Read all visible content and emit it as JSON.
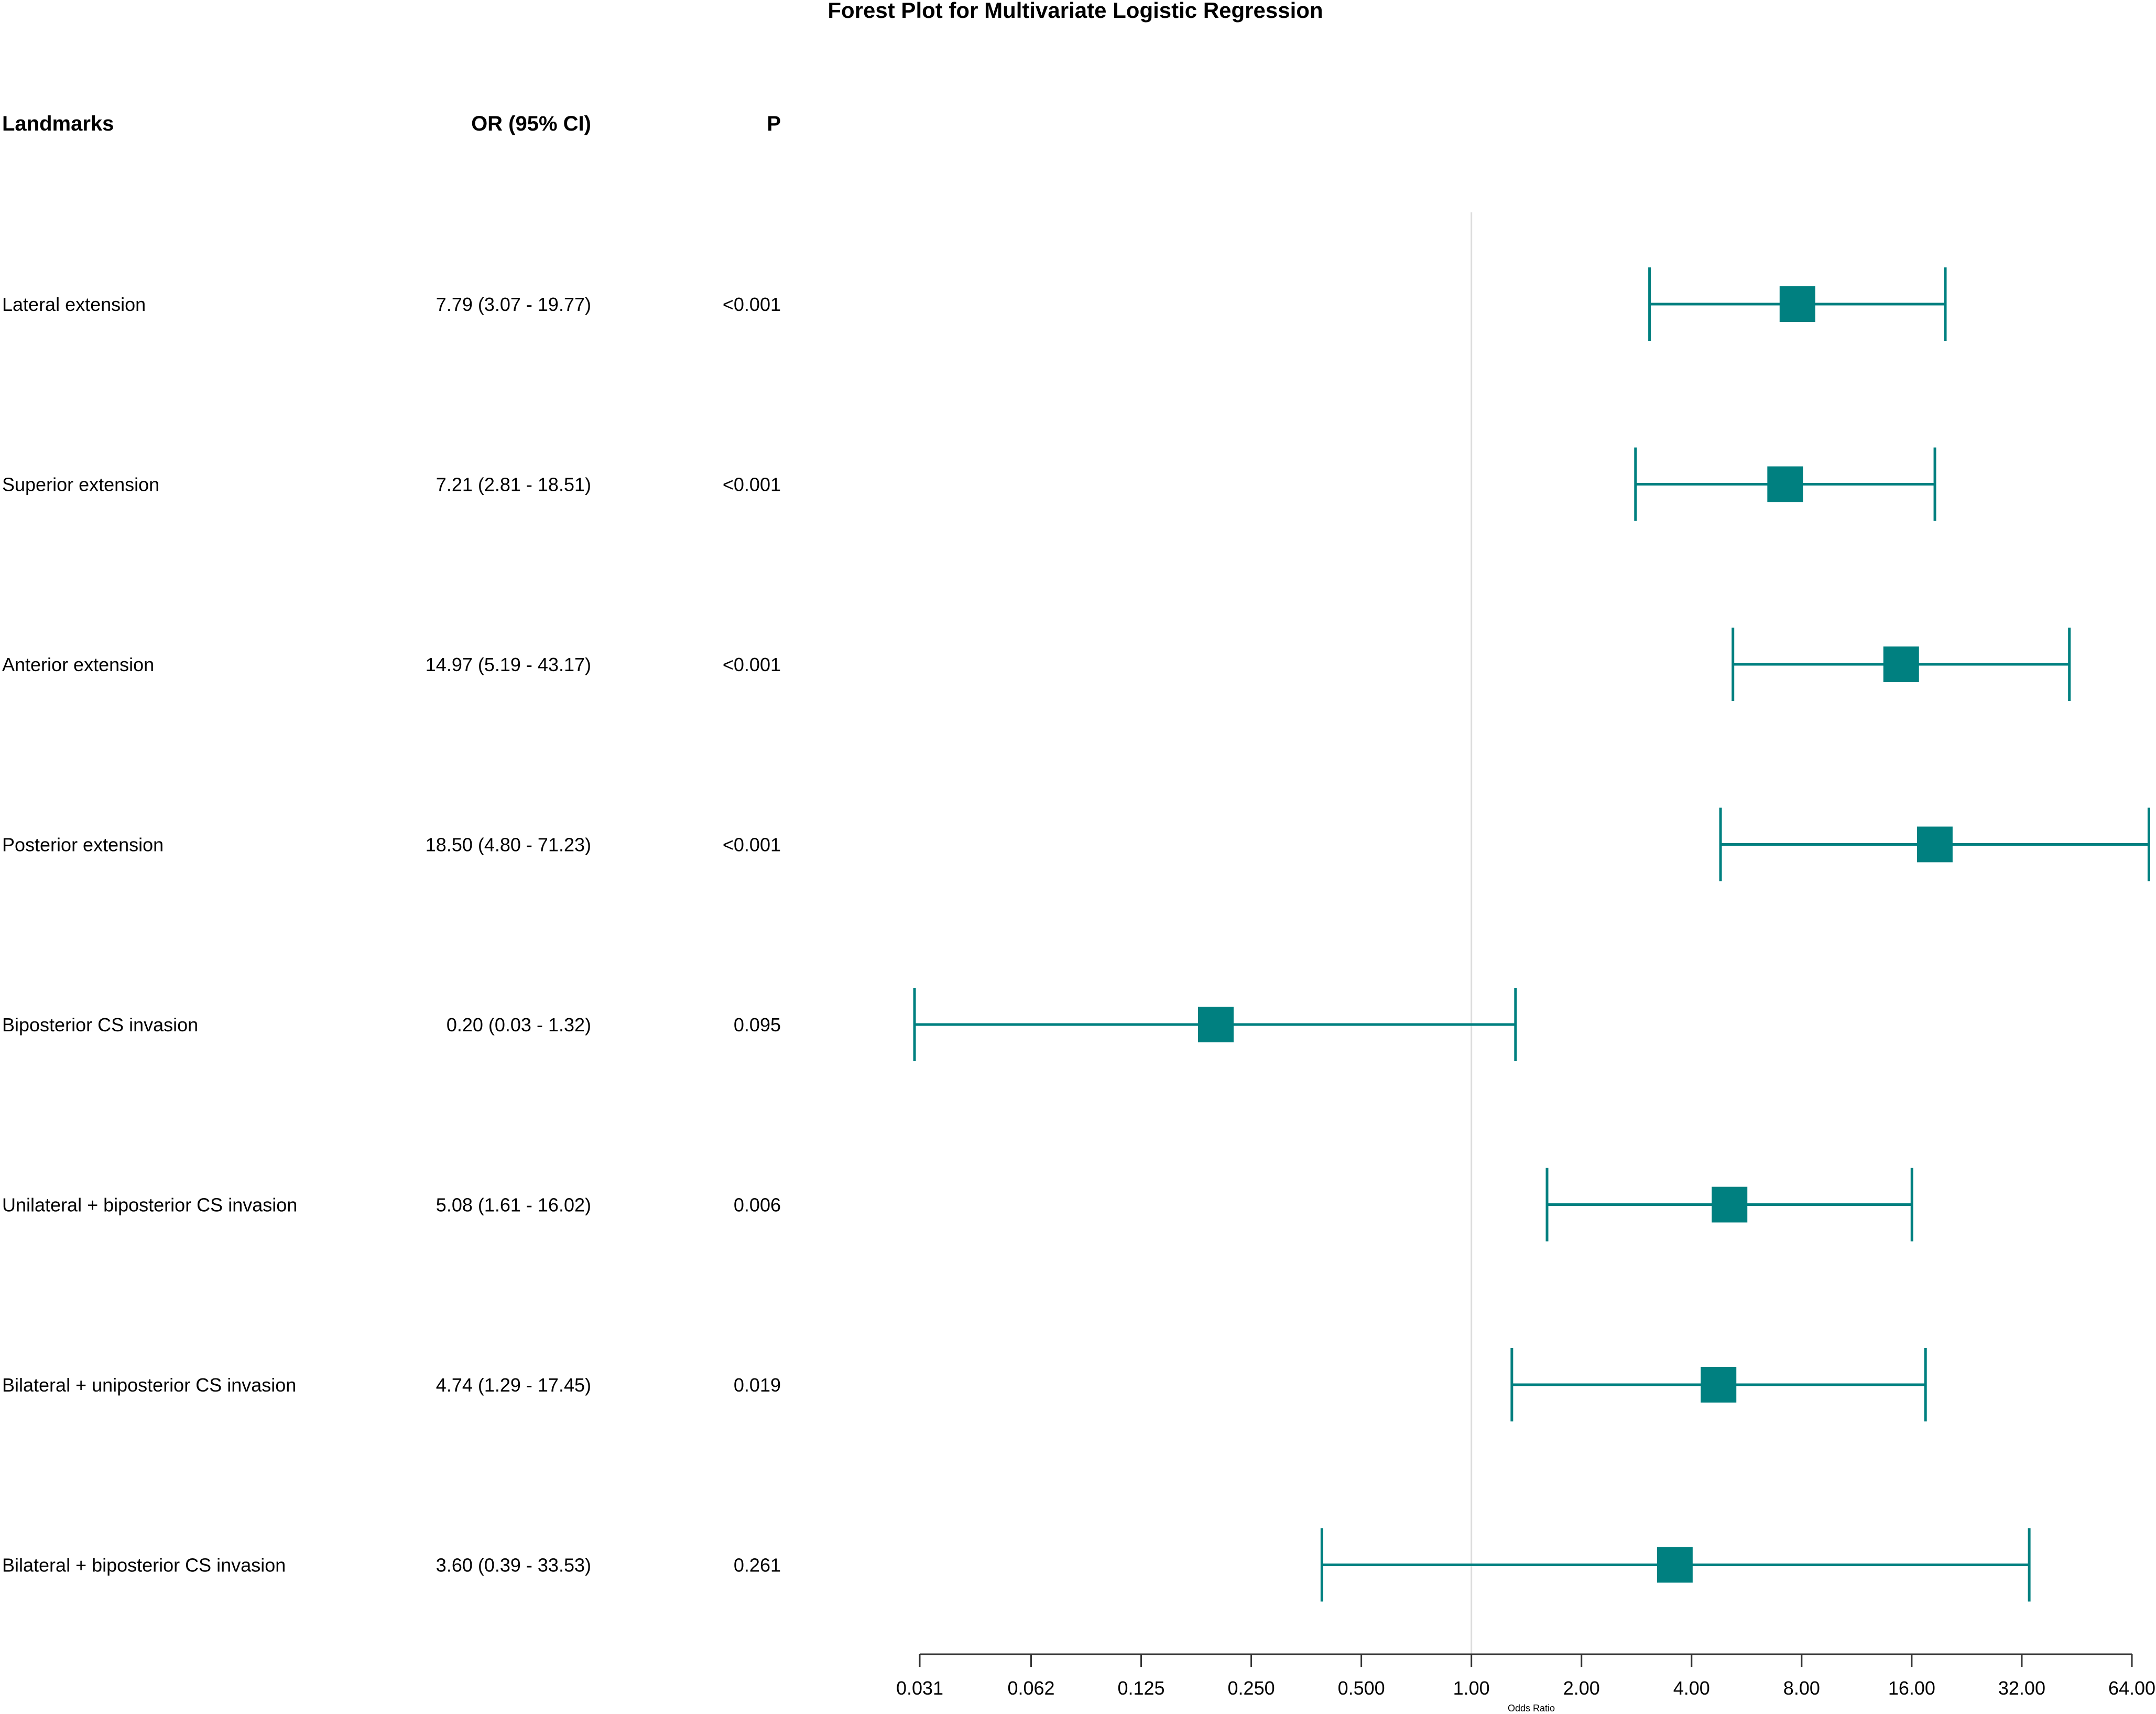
{
  "chart_data": {
    "type": "forest",
    "title": "Forest Plot for Multivariate Logistic Regression",
    "columns": {
      "label": "Landmarks",
      "estimate": "OR (95% CI)",
      "p": "P"
    },
    "rows": [
      {
        "label": "Lateral extension",
        "or": 7.79,
        "lower": 3.07,
        "upper": 19.77,
        "or_text": "7.79 (3.07 - 19.77)",
        "p_text": "<0.001"
      },
      {
        "label": "Superior extension",
        "or": 7.21,
        "lower": 2.81,
        "upper": 18.51,
        "or_text": "7.21 (2.81 - 18.51)",
        "p_text": "<0.001"
      },
      {
        "label": "Anterior extension",
        "or": 14.97,
        "lower": 5.19,
        "upper": 43.17,
        "or_text": "14.97 (5.19 - 43.17)",
        "p_text": "<0.001"
      },
      {
        "label": "Posterior extension",
        "or": 18.5,
        "lower": 4.8,
        "upper": 71.23,
        "or_text": "18.50 (4.80 - 71.23)",
        "p_text": "<0.001"
      },
      {
        "label": "Biposterior CS invasion",
        "or": 0.2,
        "lower": 0.03,
        "upper": 1.32,
        "or_text": "0.20 (0.03 - 1.32)",
        "p_text": "0.095"
      },
      {
        "label": "Unilateral + biposterior CS invasion",
        "or": 5.08,
        "lower": 1.61,
        "upper": 16.02,
        "or_text": "5.08 (1.61 - 16.02)",
        "p_text": "0.006"
      },
      {
        "label": "Bilateral + uniposterior CS invasion",
        "or": 4.74,
        "lower": 1.29,
        "upper": 17.45,
        "or_text": "4.74 (1.29 - 17.45)",
        "p_text": "0.019"
      },
      {
        "label": "Bilateral + biposterior CS invasion",
        "or": 3.6,
        "lower": 0.39,
        "upper": 33.53,
        "or_text": "3.60 (0.39 - 33.53)",
        "p_text": "0.261"
      }
    ],
    "x_scale": "log2",
    "xlim": [
      0.031,
      64
    ],
    "reference_line": 1,
    "x_ticks": [
      0.031,
      0.0625,
      0.125,
      0.25,
      0.5,
      1,
      2,
      4,
      8,
      16,
      32,
      64
    ],
    "x_tick_labels": [
      "0.031",
      "0.062",
      "0.125",
      "0.250",
      "0.500",
      "1.00",
      "2.00",
      "4.00",
      "8.00",
      "16.00",
      "32.00",
      "64.00"
    ],
    "xlabel": "Odds Ratio",
    "marker_color": "#008080",
    "reference_line_color": "#dddddd",
    "axis_color": "#333333"
  }
}
